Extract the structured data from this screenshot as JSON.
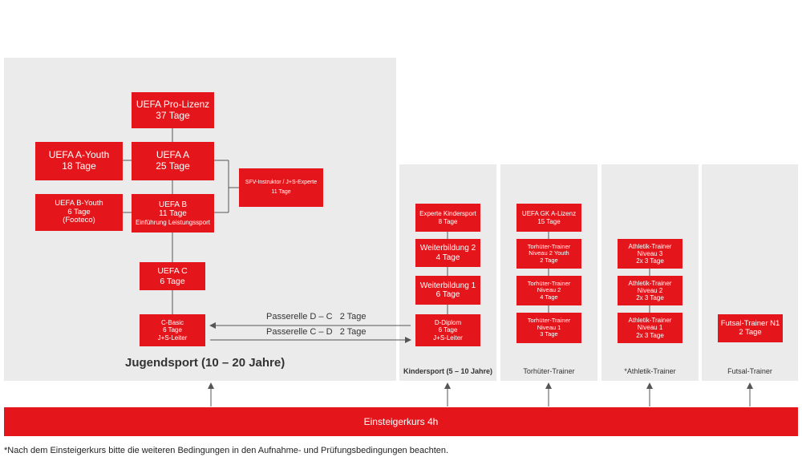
{
  "colors": {
    "accent": "#e5161b",
    "panel": "#ebebeb",
    "line": "#555555"
  },
  "sections": {
    "jugend": "Jugendsport (10 – 20 Jahre)",
    "kinder": "Kindersport (5 – 10 Jahre)",
    "torhueter": "Torhüter-Trainer",
    "athletik": "*Athletik-Trainer",
    "futsal": "Futsal-Trainer"
  },
  "jugend": {
    "pro": {
      "l1": "UEFA Pro-Lizenz",
      "l2": "37 Tage"
    },
    "a": {
      "l1": "UEFA A",
      "l2": "25 Tage"
    },
    "a_youth": {
      "l1": "UEFA A-Youth",
      "l2": "18 Tage"
    },
    "b": {
      "l1": "UEFA B",
      "l2": "11 Tage",
      "l3": "Einführung Leistungssport"
    },
    "b_youth": {
      "l1": "UEFA B-Youth",
      "l2": "6 Tage",
      "l3": "(Footeco)"
    },
    "sfv": {
      "l1": "SFV-Instruktor / J+S-Experte",
      "l2": "11 Tage"
    },
    "c": {
      "l1": "UEFA C",
      "l2": "6 Tage"
    },
    "c_basic": {
      "l1": "C-Basic",
      "l2": "6 Tage",
      "l3": "J+S-Leiter"
    }
  },
  "passerelle": {
    "dc": "Passerelle D – C   2 Tage",
    "cd": "Passerelle C – D   2 Tage"
  },
  "kinder": {
    "experte": {
      "l1": "Experte Kindersport",
      "l2": "8 Tage"
    },
    "wb2": {
      "l1": "Weiterbildung 2",
      "l2": "4 Tage"
    },
    "wb1": {
      "l1": "Weiterbildung 1",
      "l2": "6 Tage"
    },
    "d_diplom": {
      "l1": "D-Diplom",
      "l2": "6 Tage",
      "l3": "J+S-Leiter"
    }
  },
  "torhueter": {
    "gk_a": {
      "l1": "UEFA GK A-Lizenz",
      "l2": "15 Tage"
    },
    "n2y": {
      "l1": "Torhüter-Trainer",
      "l2": "Niveau 2 Youth",
      "l3": "2 Tage"
    },
    "n2": {
      "l1": "Torhüter-Trainer",
      "l2": "Niveau 2",
      "l3": "4 Tage"
    },
    "n1": {
      "l1": "Torhüter-Trainer",
      "l2": "Niveau 1",
      "l3": "3 Tage"
    }
  },
  "athletik": {
    "n3": {
      "l1": "Athletik-Trainer",
      "l2": "Niveau 3",
      "l3": "2x 3 Tage"
    },
    "n2": {
      "l1": "Athletik-Trainer",
      "l2": "Niveau 2",
      "l3": "2x 3 Tage"
    },
    "n1": {
      "l1": "Athletik-Trainer",
      "l2": "Niveau 1",
      "l3": "2x 3 Tage"
    }
  },
  "futsal": {
    "n1": {
      "l1": "Futsal-Trainer N1",
      "l2": "2 Tage"
    }
  },
  "einsteiger": "Einsteigerkurs 4h",
  "footnote": "*Nach dem Einsteigerkurs bitte die weiteren Bedingungen in den Aufnahme- und Prüfungsbedingungen beachten."
}
